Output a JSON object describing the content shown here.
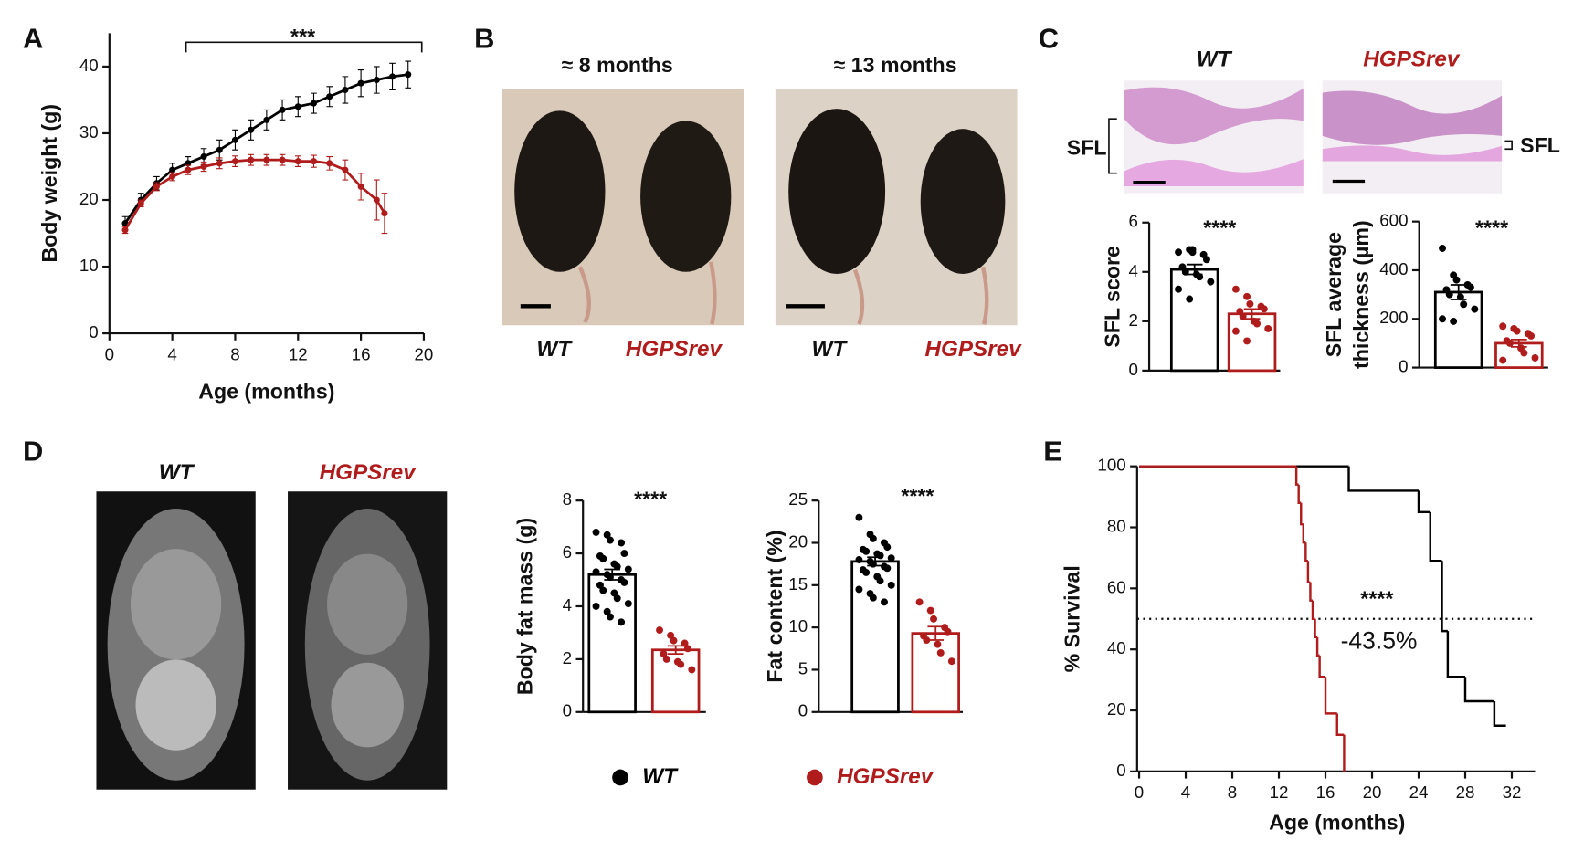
{
  "figure": {
    "panels": [
      "A",
      "B",
      "C",
      "D",
      "E"
    ],
    "b_ages": [
      "≈ 8 months",
      "≈ 13 months"
    ],
    "b_labels": [
      "WT",
      "HGPSrev",
      "WT",
      "HGPSrev"
    ],
    "c_labels": [
      "WT",
      "HGPSrev"
    ],
    "c_sfl": [
      "SFL",
      "SFL"
    ],
    "d_labels": [
      "WT",
      "HGPSrev"
    ],
    "legend": [
      {
        "name": "WT",
        "color": "#000000"
      },
      {
        "name": "HGPSrev",
        "color": "#b01c1c"
      }
    ]
  },
  "chart_data": [
    {
      "type": "line",
      "ylabel": "Body weight (g)",
      "xlabel": "Age (months)",
      "annotation": "***",
      "xlim": [
        0,
        20
      ],
      "xticks": [
        0,
        4,
        8,
        12,
        16,
        20
      ],
      "ylim": [
        0,
        45
      ],
      "yticks": [
        0,
        10,
        20,
        30,
        40
      ],
      "series": [
        {
          "color": "#000000",
          "x": [
            1,
            2,
            3,
            4,
            5,
            6,
            7,
            8,
            9,
            10,
            11,
            12,
            13,
            14,
            15,
            16,
            17,
            18,
            19
          ],
          "values": [
            16.5,
            20,
            22.5,
            24.5,
            25.5,
            26.5,
            27.5,
            29,
            30.5,
            32,
            33.5,
            34,
            34.5,
            35.5,
            36.5,
            37.5,
            38,
            38.5,
            38.8
          ],
          "errors": [
            1,
            1,
            1,
            1,
            1,
            1.2,
            1.5,
            1.5,
            1.5,
            1.5,
            1.5,
            1.5,
            1.5,
            1.5,
            2,
            2,
            2,
            2,
            2
          ]
        },
        {
          "color": "#b01c1c",
          "x": [
            1,
            2,
            3,
            4,
            5,
            6,
            7,
            8,
            9,
            10,
            11,
            12,
            13,
            14,
            15,
            16,
            17,
            17.5
          ],
          "values": [
            15.5,
            19.5,
            22,
            23.5,
            24.5,
            25,
            25.5,
            25.8,
            26,
            26,
            26,
            25.8,
            25.8,
            25.5,
            24.5,
            22,
            20,
            18
          ],
          "errors": [
            0.5,
            0.5,
            0.6,
            0.6,
            0.7,
            0.7,
            0.8,
            0.8,
            0.8,
            0.8,
            0.8,
            0.8,
            0.9,
            1,
            1.5,
            2,
            3,
            3
          ]
        }
      ]
    },
    {
      "type": "bar",
      "ylabel": "SFL score",
      "annotation": "****",
      "ylim": [
        0,
        6
      ],
      "yticks": [
        0,
        2,
        4,
        6
      ],
      "colors": [
        "#000000",
        "#b01c1c"
      ],
      "values": [
        4.1,
        2.3
      ],
      "errors": [
        0.2,
        0.2
      ],
      "points": [
        [
          4.8,
          4.9,
          4.9,
          4.7,
          4.5,
          4.2,
          4.0,
          3.9,
          3.8,
          3.6,
          3.3,
          2.9,
          4.8
        ],
        [
          3.3,
          3.0,
          2.7,
          2.6,
          2.5,
          2.4,
          2.2,
          2.0,
          1.9,
          1.7,
          1.6,
          1.2
        ]
      ]
    },
    {
      "type": "bar",
      "ylabel": [
        "SFL average",
        "thickness (µm)"
      ],
      "annotation": "****",
      "ylim": [
        0,
        600
      ],
      "yticks": [
        0,
        200,
        400,
        600
      ],
      "colors": [
        "#000000",
        "#b01c1c"
      ],
      "values": [
        310,
        100
      ],
      "errors": [
        30,
        15
      ],
      "points": [
        [
          490,
          380,
          360,
          340,
          330,
          320,
          300,
          290,
          260,
          240,
          200,
          190
        ],
        [
          170,
          160,
          150,
          140,
          130,
          110,
          100,
          80,
          60,
          40,
          30
        ]
      ]
    },
    {
      "type": "bar",
      "ylabel": "Body fat mass (g)",
      "annotation": "****",
      "ylim": [
        0,
        8
      ],
      "yticks": [
        0,
        2,
        4,
        6,
        8
      ],
      "colors": [
        "#000000",
        "#b01c1c"
      ],
      "values": [
        5.2,
        2.35
      ],
      "errors": [
        0.2,
        0.15
      ],
      "points": [
        [
          6.8,
          6.7,
          6.5,
          6.4,
          6.0,
          5.9,
          5.8,
          5.6,
          5.5,
          5.4,
          5.3,
          5.2,
          5.1,
          5.0,
          4.9,
          4.8,
          4.6,
          4.5,
          4.3,
          4.1,
          4.0,
          3.8,
          3.6,
          3.4
        ],
        [
          3.1,
          2.9,
          2.7,
          2.6,
          2.4,
          2.2,
          2.0,
          1.9,
          1.8,
          1.6
        ]
      ]
    },
    {
      "type": "bar",
      "ylabel": "Fat content (%)",
      "annotation": "****",
      "ylim": [
        0,
        25
      ],
      "yticks": [
        0,
        5,
        10,
        15,
        20,
        25
      ],
      "colors": [
        "#000000",
        "#b01c1c"
      ],
      "values": [
        17.8,
        9.3
      ],
      "errors": [
        0.5,
        0.8
      ],
      "points": [
        [
          23,
          21,
          20.5,
          20,
          19.5,
          19.2,
          19,
          18.7,
          18.5,
          18.2,
          18,
          17.8,
          17.5,
          17.2,
          17,
          16.8,
          16.5,
          16,
          15.5,
          15,
          14.5,
          14,
          13.5,
          13
        ],
        [
          13,
          12,
          11,
          10,
          9.5,
          9,
          8.5,
          8,
          7,
          6
        ]
      ]
    },
    {
      "type": "step",
      "ylabel": "% Survival",
      "xlabel": "Age (months)",
      "annotations": [
        "****",
        "-43.5%"
      ],
      "xlim": [
        0,
        34
      ],
      "xticks": [
        0,
        4,
        8,
        12,
        16,
        20,
        24,
        28,
        32
      ],
      "ylim": [
        0,
        100
      ],
      "yticks": [
        0,
        20,
        40,
        60,
        80,
        100
      ],
      "hline": 50,
      "series": [
        {
          "color": "#000000",
          "x": [
            0,
            18,
            24,
            25,
            26,
            26.5,
            28,
            30.5,
            31.5
          ],
          "values": [
            100,
            92,
            85,
            69,
            46,
            31,
            23,
            15,
            15
          ]
        },
        {
          "color": "#b01c1c",
          "x": [
            0,
            13.5,
            13.7,
            13.9,
            14.1,
            14.3,
            14.5,
            14.7,
            14.9,
            15.1,
            15.3,
            15.5,
            16,
            17,
            17.6
          ],
          "values": [
            100,
            94,
            88,
            81,
            75,
            69,
            62,
            56,
            50,
            44,
            38,
            31,
            19,
            12,
            0
          ]
        }
      ]
    }
  ]
}
